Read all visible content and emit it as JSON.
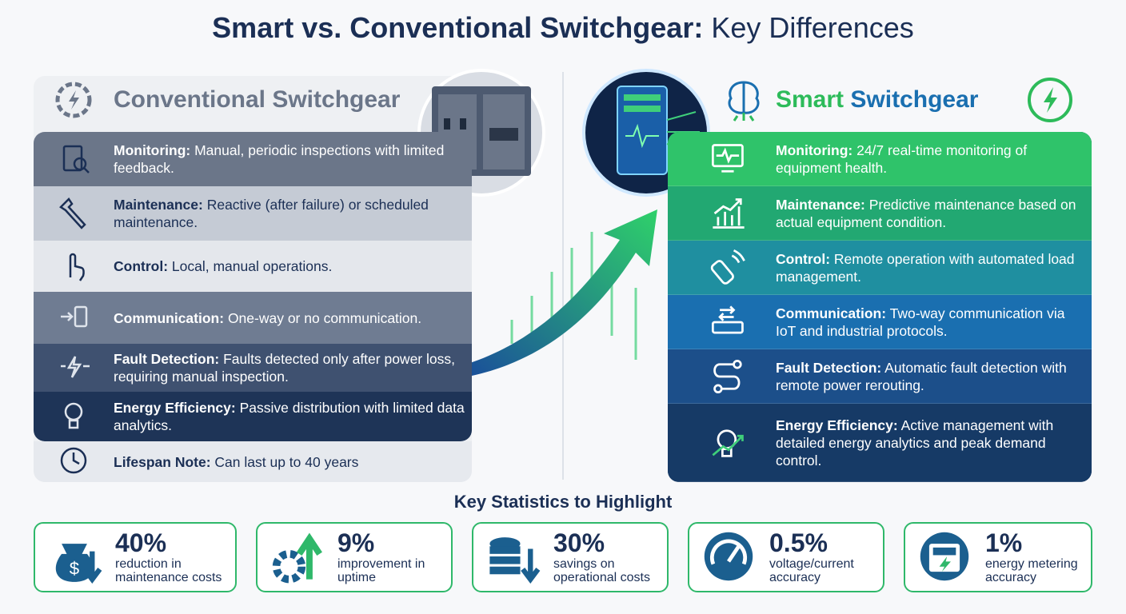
{
  "header": {
    "title_bold": "Smart vs. Conventional Switchgear:",
    "title_regular": "Key Differences"
  },
  "conventional": {
    "title": "Conventional Switchgear",
    "rows": [
      {
        "label": "Monitoring:",
        "text": "Manual, periodic inspections with limited feedback."
      },
      {
        "label": "Maintenance:",
        "text": "Reactive (after failure) or scheduled maintenance."
      },
      {
        "label": "Control:",
        "text": "Local, manual operations."
      },
      {
        "label": "Communication:",
        "text": "One-way or no communication."
      },
      {
        "label": "Fault Detection:",
        "text": "Faults detected only after power loss, requiring manual inspection."
      },
      {
        "label": "Energy Efficiency:",
        "text": "Passive distribution with limited data analytics."
      }
    ],
    "note": {
      "label": "Lifespan Note:",
      "text": "Can last up to 40 years"
    }
  },
  "smart": {
    "title_smart": "Smart",
    "title_switchgear": "Switchgear",
    "rows": [
      {
        "label": "Monitoring:",
        "text": "24/7 real-time monitoring of equipment health."
      },
      {
        "label": "Maintenance:",
        "text": "Predictive maintenance based on actual equipment condition."
      },
      {
        "label": "Control:",
        "text": "Remote operation with automated load management."
      },
      {
        "label": "Communication:",
        "text": "Two-way communication via IoT and industrial protocols."
      },
      {
        "label": "Fault Detection:",
        "text": "Automatic fault detection with remote power rerouting."
      },
      {
        "label": "Energy Efficiency:",
        "text": "Active management with detailed energy analytics and peak demand control."
      }
    ]
  },
  "statistics": {
    "heading": "Key Statistics to Highlight",
    "items": [
      {
        "value": "40%",
        "label": "reduction in maintenance costs"
      },
      {
        "value": "9%",
        "label": "improvement in uptime"
      },
      {
        "value": "30%",
        "label": "savings on operational costs"
      },
      {
        "value": "0.5%",
        "label": "voltage/current accuracy"
      },
      {
        "value": "1%",
        "label": "energy metering accuracy"
      }
    ]
  }
}
